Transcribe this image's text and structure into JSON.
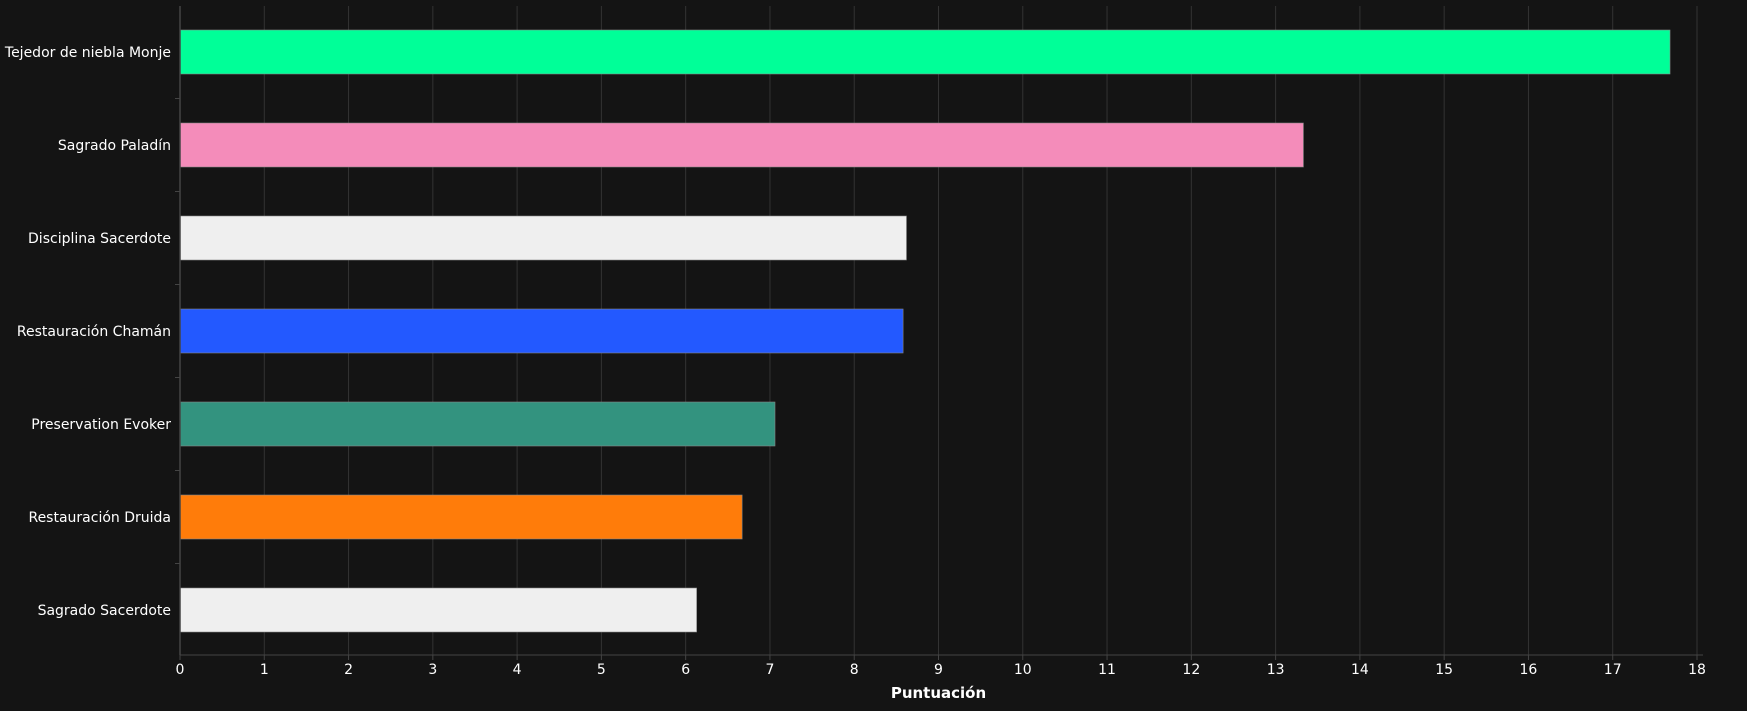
{
  "chart_data": {
    "type": "bar",
    "orientation": "horizontal",
    "title": "",
    "xlabel": "Puntuación",
    "ylabel": "",
    "xlim": [
      0,
      18
    ],
    "x_ticks": [
      0,
      1,
      2,
      3,
      4,
      5,
      6,
      7,
      8,
      9,
      10,
      11,
      12,
      13,
      14,
      15,
      16,
      17,
      18
    ],
    "grid": "vertical",
    "legend": "none",
    "categories": [
      "Tejedor de niebla Monje",
      "Sagrado Paladín",
      "Disciplina Sacerdote",
      "Restauración Chamán",
      "Preservation Evoker",
      "Restauración Druida",
      "Sagrado Sacerdote"
    ],
    "values": [
      17.68,
      13.33,
      8.62,
      8.58,
      7.06,
      6.67,
      6.13
    ],
    "colors": [
      "#00ff98",
      "#f48cba",
      "#efefef",
      "#2359ff",
      "#33937f",
      "#ff7c0a",
      "#efefef"
    ]
  },
  "theme": {
    "background": "#141414",
    "text": "#ffffff",
    "grid": "#333333",
    "axis": "#444444"
  }
}
